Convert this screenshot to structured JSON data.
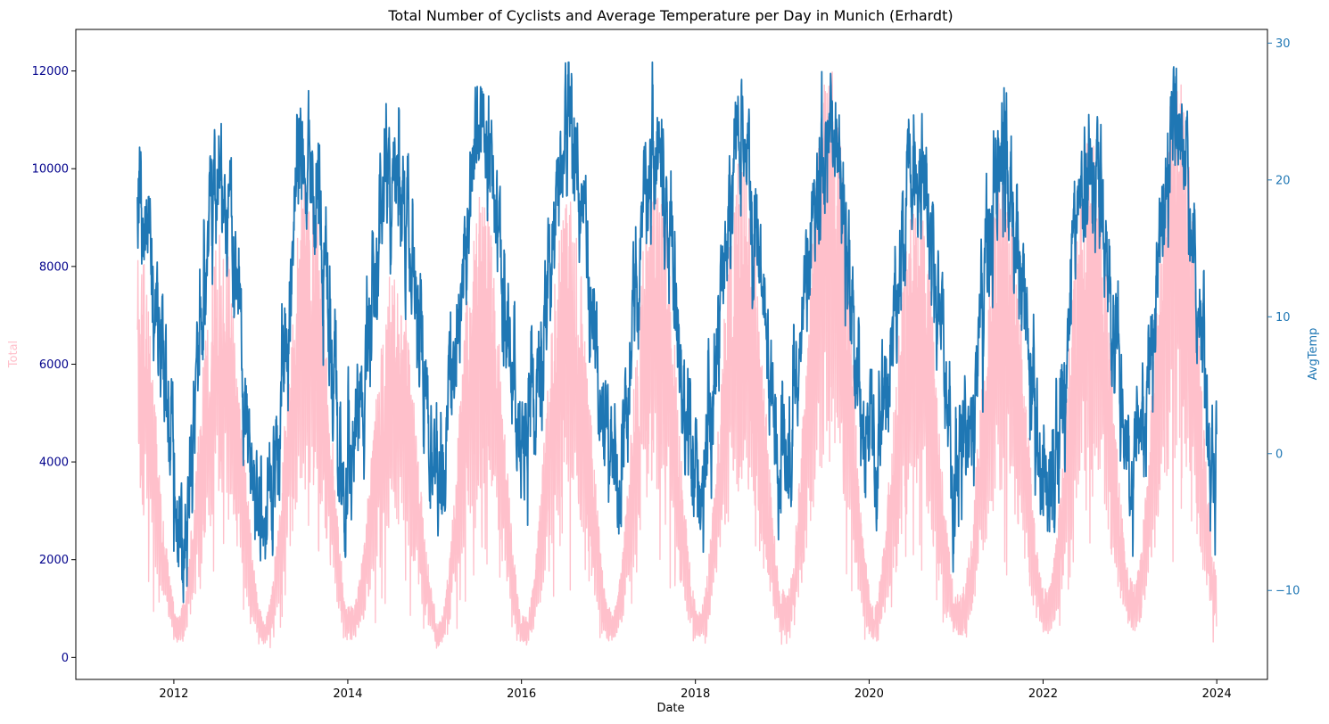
{
  "chart_data": {
    "type": "line",
    "title": "Total Number of Cyclists and Average Temperature per Day in Munich (Erhardt)",
    "xlabel": "Date",
    "ylabel_left": "Total",
    "ylabel_right": "AvgTemp",
    "x_tick_labels": [
      "2012",
      "2014",
      "2016",
      "2018",
      "2020",
      "2022",
      "2024"
    ],
    "x_range": [
      "2010-11-15",
      "2024-08-01"
    ],
    "x_data_range": [
      "2011-08-01",
      "2023-12-31"
    ],
    "ylim_left": [
      -450,
      12850
    ],
    "ylim_right": [
      -16.5,
      31
    ],
    "y_left_ticks": [
      "0",
      "2000",
      "4000",
      "6000",
      "8000",
      "10000",
      "12000"
    ],
    "y_right_ticks": [
      "−10",
      "0",
      "10",
      "20",
      "30"
    ],
    "grid": false,
    "series": [
      {
        "name": "Total",
        "axis": "left",
        "color": "#ffc0cb",
        "description": "daily cyclist totals, seasonal: ~500-2000 in winter, ~7000-9000 in summer, peak ~12300 in mid-2019",
        "seasonal_profile": {
          "summer_peaks": [
            7800,
            7600,
            8600,
            6900,
            8300,
            8300,
            8700,
            9000,
            10400,
            8200,
            8500,
            9200,
            10300
          ],
          "winter_troughs": [
            900,
            700,
            700,
            900,
            600,
            700,
            800,
            800,
            1100,
            900,
            1100,
            1200,
            1300
          ]
        }
      },
      {
        "name": "AvgTemp",
        "axis": "right",
        "color": "#1f77b4",
        "description": "daily average temperature in °C, winter lows around -5 to -15, summer highs around 20 to 29",
        "seasonal_profile": {
          "summer_peaks": [
            20.5,
            20.0,
            22.0,
            20.5,
            23.5,
            22.5,
            22.0,
            22.5,
            22.5,
            21.0,
            21.0,
            21.0,
            22.5
          ],
          "winter_troughs": [
            0.0,
            -6.0,
            -4.0,
            0.0,
            -1.0,
            0.0,
            -2.0,
            -2.0,
            0.5,
            -1.0,
            -1.0,
            -2.0,
            -1.0
          ]
        }
      }
    ]
  },
  "colors": {
    "left_axis_tick_color": "#00008b",
    "left_axis_label_color": "#ffc0cb",
    "right_axis_color": "#1f77b4",
    "frame": "#000000"
  }
}
